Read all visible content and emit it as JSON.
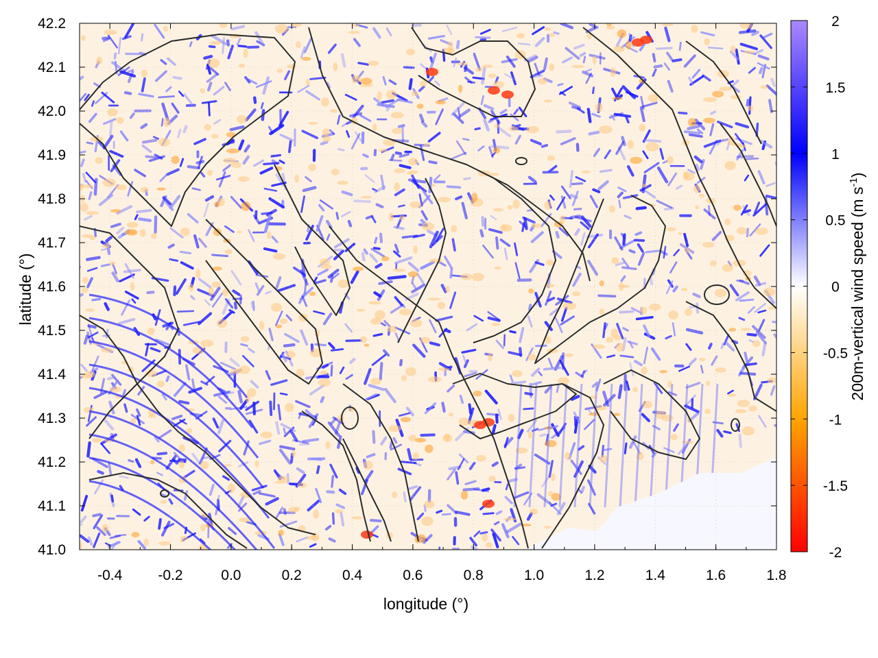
{
  "chart_data": {
    "type": "heatmap",
    "xlabel": "longitude (°)",
    "ylabel": "latitude (°)",
    "colorbar_label": "200m-vertical wind speed (m s",
    "colorbar_label_sup": "-1",
    "colorbar_label_end": ")",
    "xlim": [
      -0.5,
      1.8
    ],
    "ylim": [
      41.0,
      42.2
    ],
    "x_ticks": [
      -0.4,
      -0.2,
      0.0,
      0.2,
      0.4,
      0.6,
      0.8,
      1.0,
      1.2,
      1.4,
      1.6,
      1.8
    ],
    "x_tick_labels": [
      "-0.4",
      "-0.2",
      "0.0",
      "0.2",
      "0.4",
      "0.6",
      "0.8",
      "1.0",
      "1.2",
      "1.4",
      "1.6",
      "1.8"
    ],
    "y_ticks": [
      41.0,
      41.1,
      41.2,
      41.3,
      41.4,
      41.5,
      41.6,
      41.7,
      41.8,
      41.9,
      42.0,
      42.1,
      42.2
    ],
    "y_tick_labels": [
      "41.0",
      "41.1",
      "41.2",
      "41.3",
      "41.4",
      "41.5",
      "41.6",
      "41.7",
      "41.8",
      "41.9",
      "42.0",
      "42.1",
      "42.2"
    ],
    "colorbar_range": [
      -2,
      2
    ],
    "colorbar_ticks": [
      -2,
      -1.5,
      -1,
      -0.5,
      0,
      0.5,
      1,
      1.5,
      2
    ],
    "colorbar_tick_labels": [
      "-2",
      "-1.5",
      "-1",
      "-0.5",
      "0",
      "0.5",
      "1",
      "1.5",
      "2"
    ],
    "colormap": [
      {
        "value": -2,
        "color": "#ff0000"
      },
      {
        "value": -1,
        "color": "#ffa500"
      },
      {
        "value": 0,
        "color": "#ffffff"
      },
      {
        "value": 1,
        "color": "#0000ff"
      },
      {
        "value": 2,
        "color": "#aa88ff"
      }
    ],
    "grid": true,
    "contours": "black terrain elevation contour lines overlaid",
    "sea_region": "lower-right corner near-zero (white)"
  }
}
